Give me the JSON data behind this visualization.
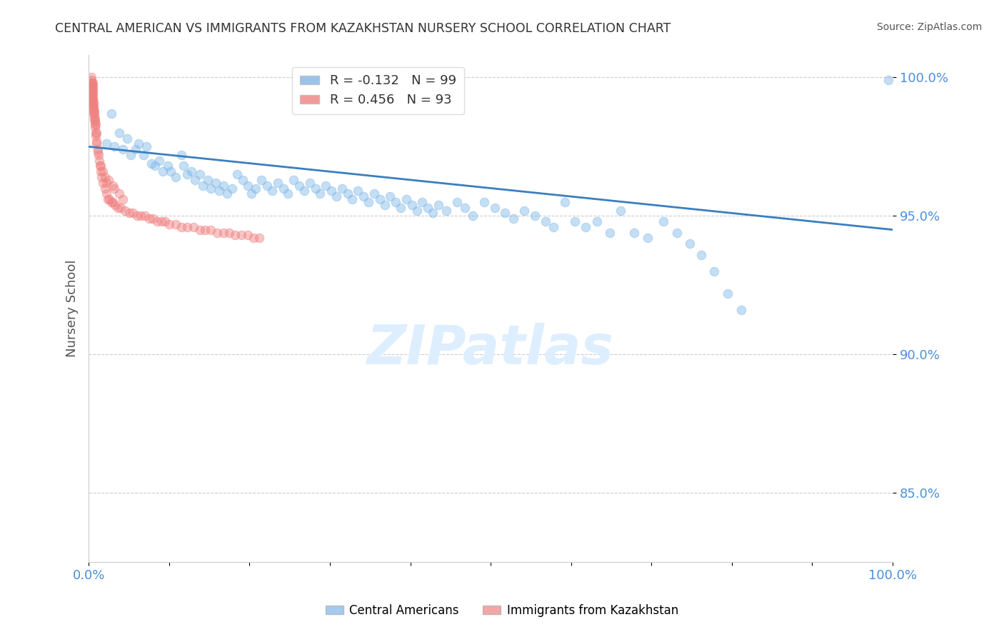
{
  "title": "CENTRAL AMERICAN VS IMMIGRANTS FROM KAZAKHSTAN NURSERY SCHOOL CORRELATION CHART",
  "source": "Source: ZipAtlas.com",
  "ylabel": "Nursery School",
  "xlim": [
    0.0,
    1.0
  ],
  "ylim": [
    0.825,
    1.008
  ],
  "yticks": [
    0.85,
    0.9,
    0.95,
    1.0
  ],
  "ytick_labels": [
    "85.0%",
    "90.0%",
    "95.0%",
    "100.0%"
  ],
  "blue_color": "#7EB6E8",
  "pink_color": "#F08080",
  "line_color": "#3A7FBF",
  "legend_blue_r": "-0.132",
  "legend_blue_n": "99",
  "legend_pink_r": "0.456",
  "legend_pink_n": "93",
  "background_color": "#FFFFFF",
  "grid_color": "#CCCCCC",
  "title_color": "#333333",
  "axis_label_color": "#555555",
  "tick_label_color": "#4A90D9",
  "source_color": "#555555",
  "reg_line_x": [
    0.0,
    1.0
  ],
  "reg_line_y_start": 0.975,
  "reg_line_y_end": 0.945,
  "marker_size": 80,
  "marker_alpha": 0.45,
  "blue_scatter_x": [
    0.022,
    0.028,
    0.032,
    0.038,
    0.042,
    0.048,
    0.052,
    0.058,
    0.062,
    0.068,
    0.072,
    0.078,
    0.082,
    0.088,
    0.092,
    0.098,
    0.102,
    0.108,
    0.115,
    0.118,
    0.122,
    0.128,
    0.132,
    0.138,
    0.142,
    0.148,
    0.152,
    0.158,
    0.162,
    0.168,
    0.172,
    0.178,
    0.185,
    0.192,
    0.198,
    0.202,
    0.208,
    0.215,
    0.222,
    0.228,
    0.235,
    0.242,
    0.248,
    0.255,
    0.262,
    0.268,
    0.275,
    0.282,
    0.288,
    0.295,
    0.302,
    0.308,
    0.315,
    0.322,
    0.328,
    0.335,
    0.342,
    0.348,
    0.355,
    0.362,
    0.368,
    0.375,
    0.382,
    0.388,
    0.395,
    0.402,
    0.408,
    0.415,
    0.422,
    0.428,
    0.435,
    0.445,
    0.458,
    0.468,
    0.478,
    0.492,
    0.505,
    0.518,
    0.528,
    0.542,
    0.555,
    0.568,
    0.578,
    0.592,
    0.605,
    0.618,
    0.632,
    0.648,
    0.662,
    0.678,
    0.695,
    0.715,
    0.732,
    0.748,
    0.762,
    0.778,
    0.795,
    0.812,
    0.995
  ],
  "blue_scatter_y": [
    0.976,
    0.987,
    0.975,
    0.98,
    0.974,
    0.978,
    0.972,
    0.974,
    0.976,
    0.972,
    0.975,
    0.969,
    0.968,
    0.97,
    0.966,
    0.968,
    0.966,
    0.964,
    0.972,
    0.968,
    0.965,
    0.966,
    0.963,
    0.965,
    0.961,
    0.963,
    0.96,
    0.962,
    0.959,
    0.961,
    0.958,
    0.96,
    0.965,
    0.963,
    0.961,
    0.958,
    0.96,
    0.963,
    0.961,
    0.959,
    0.962,
    0.96,
    0.958,
    0.963,
    0.961,
    0.959,
    0.962,
    0.96,
    0.958,
    0.961,
    0.959,
    0.957,
    0.96,
    0.958,
    0.956,
    0.959,
    0.957,
    0.955,
    0.958,
    0.956,
    0.954,
    0.957,
    0.955,
    0.953,
    0.956,
    0.954,
    0.952,
    0.955,
    0.953,
    0.951,
    0.954,
    0.952,
    0.955,
    0.953,
    0.95,
    0.955,
    0.953,
    0.951,
    0.949,
    0.952,
    0.95,
    0.948,
    0.946,
    0.955,
    0.948,
    0.946,
    0.948,
    0.944,
    0.952,
    0.944,
    0.942,
    0.948,
    0.944,
    0.94,
    0.936,
    0.93,
    0.922,
    0.916,
    0.999
  ],
  "pink_scatter_x": [
    0.003,
    0.003,
    0.003,
    0.003,
    0.004,
    0.004,
    0.004,
    0.004,
    0.004,
    0.004,
    0.004,
    0.005,
    0.005,
    0.005,
    0.005,
    0.005,
    0.005,
    0.005,
    0.005,
    0.005,
    0.005,
    0.006,
    0.006,
    0.006,
    0.006,
    0.006,
    0.007,
    0.007,
    0.007,
    0.007,
    0.008,
    0.008,
    0.008,
    0.009,
    0.009,
    0.01,
    0.01,
    0.011,
    0.011,
    0.012,
    0.013,
    0.014,
    0.015,
    0.016,
    0.018,
    0.02,
    0.022,
    0.024,
    0.026,
    0.028,
    0.03,
    0.033,
    0.036,
    0.04,
    0.045,
    0.05,
    0.055,
    0.06,
    0.065,
    0.07,
    0.075,
    0.08,
    0.085,
    0.09,
    0.095,
    0.1,
    0.108,
    0.115,
    0.122,
    0.13,
    0.138,
    0.145,
    0.152,
    0.16,
    0.168,
    0.175,
    0.182,
    0.19,
    0.198,
    0.205,
    0.212,
    0.025,
    0.03,
    0.032,
    0.038,
    0.042,
    0.015,
    0.018,
    0.02,
    0.022,
    0.008,
    0.009,
    0.01
  ],
  "pink_scatter_y": [
    1.0,
    0.999,
    0.998,
    0.997,
    0.998,
    0.997,
    0.996,
    0.995,
    0.994,
    0.993,
    0.992,
    0.998,
    0.997,
    0.996,
    0.995,
    0.994,
    0.993,
    0.992,
    0.991,
    0.99,
    0.989,
    0.991,
    0.99,
    0.989,
    0.988,
    0.987,
    0.988,
    0.987,
    0.986,
    0.985,
    0.984,
    0.983,
    0.982,
    0.98,
    0.979,
    0.977,
    0.976,
    0.974,
    0.973,
    0.972,
    0.97,
    0.968,
    0.966,
    0.964,
    0.962,
    0.96,
    0.958,
    0.956,
    0.956,
    0.955,
    0.955,
    0.954,
    0.953,
    0.953,
    0.952,
    0.951,
    0.951,
    0.95,
    0.95,
    0.95,
    0.949,
    0.949,
    0.948,
    0.948,
    0.948,
    0.947,
    0.947,
    0.946,
    0.946,
    0.946,
    0.945,
    0.945,
    0.945,
    0.944,
    0.944,
    0.944,
    0.943,
    0.943,
    0.943,
    0.942,
    0.942,
    0.963,
    0.961,
    0.96,
    0.958,
    0.956,
    0.968,
    0.966,
    0.964,
    0.962,
    0.985,
    0.983,
    0.98
  ]
}
